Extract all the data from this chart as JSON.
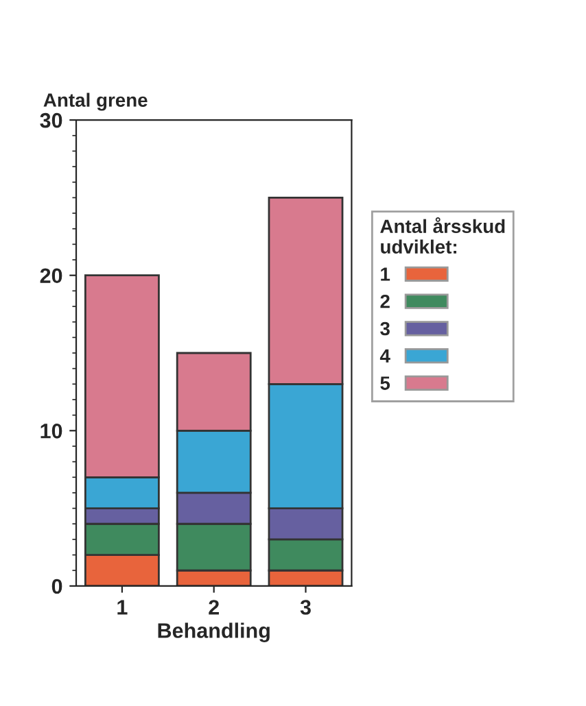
{
  "chart_data": {
    "type": "bar",
    "stacked": true,
    "xlabel": "Behandling",
    "ylabel": "Antal grene",
    "legend_title": "Antal årsskud\nudviklet:",
    "categories": [
      "1",
      "2",
      "3"
    ],
    "series": [
      {
        "name": "1",
        "color": "#e8643c",
        "values": [
          2,
          1,
          1
        ]
      },
      {
        "name": "2",
        "color": "#3f8a5e",
        "values": [
          2,
          3,
          2
        ]
      },
      {
        "name": "3",
        "color": "#6660a0",
        "values": [
          1,
          2,
          2
        ]
      },
      {
        "name": "4",
        "color": "#3aa6d4",
        "values": [
          2,
          4,
          8
        ]
      },
      {
        "name": "5",
        "color": "#d87a8e",
        "values": [
          13,
          5,
          12
        ]
      }
    ],
    "ylim": [
      0,
      30
    ],
    "yticks": [
      0,
      10,
      20,
      30
    ],
    "grid": false,
    "legend": "right"
  }
}
